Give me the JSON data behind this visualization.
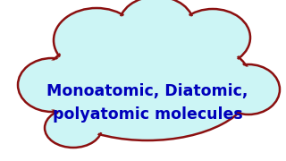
{
  "background_color": "#ffffff",
  "cloud_fill": "#ccf5f5",
  "cloud_edge": "#8b1010",
  "text_line1": "Monoatomic, Diatomic,",
  "text_line2": "polyatomic molecules",
  "text_color": "#0000bb",
  "text_fontsize": 12.5,
  "edge_lw": 1.8
}
